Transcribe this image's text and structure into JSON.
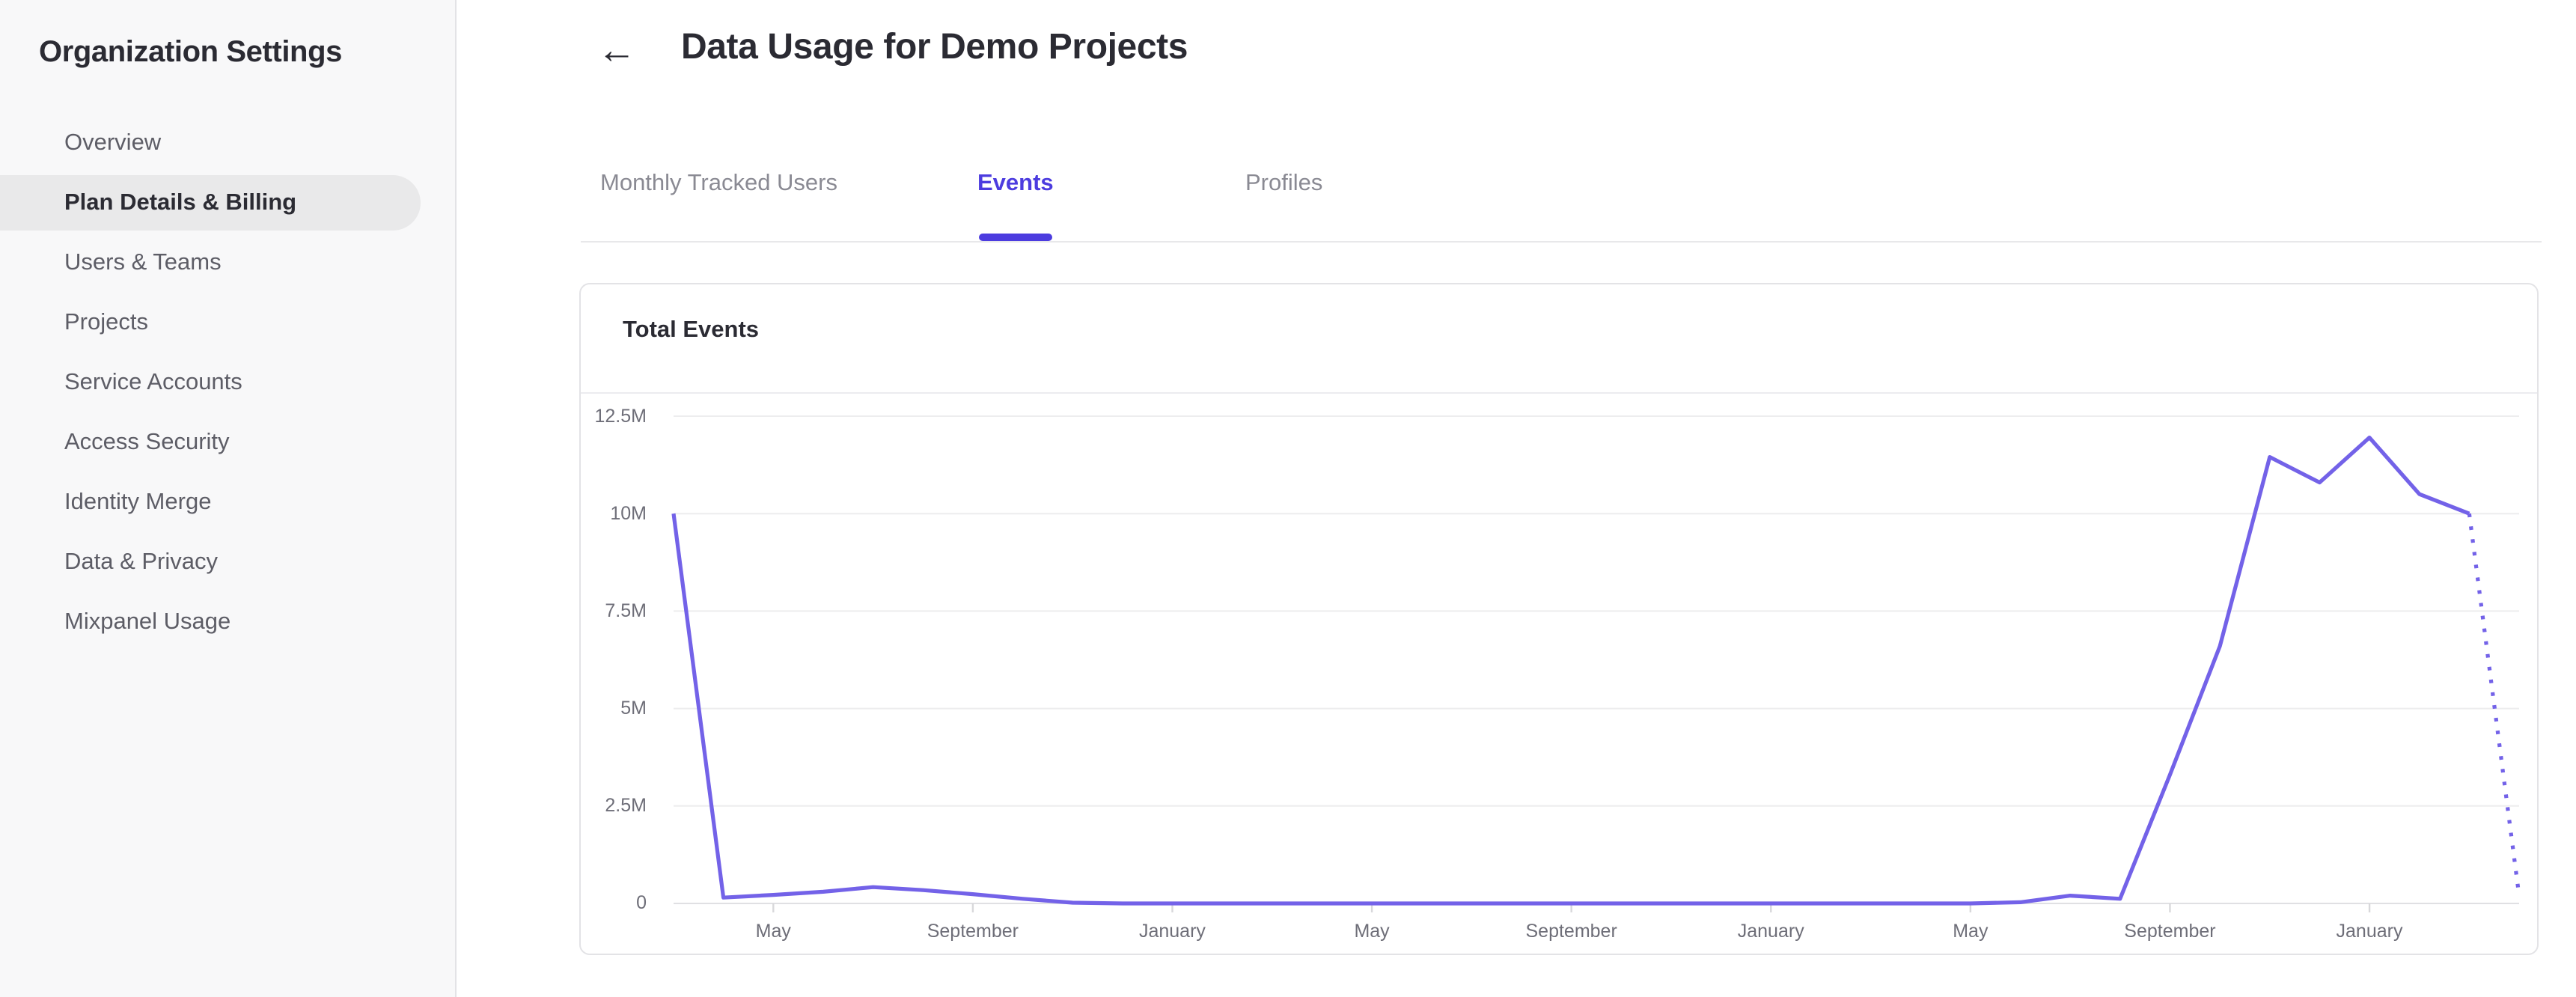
{
  "sidebar": {
    "title": "Organization Settings",
    "items": [
      {
        "label": "Overview",
        "active": false
      },
      {
        "label": "Plan Details & Billing",
        "active": true
      },
      {
        "label": "Users & Teams",
        "active": false
      },
      {
        "label": "Projects",
        "active": false
      },
      {
        "label": "Service Accounts",
        "active": false
      },
      {
        "label": "Access Security",
        "active": false
      },
      {
        "label": "Identity Merge",
        "active": false
      },
      {
        "label": "Data & Privacy",
        "active": false
      },
      {
        "label": "Mixpanel Usage",
        "active": false
      }
    ]
  },
  "header": {
    "back_icon": "←",
    "title": "Data Usage for Demo Projects"
  },
  "tabs": [
    {
      "label": "Monthly Tracked Users",
      "active": false
    },
    {
      "label": "Events",
      "active": true
    },
    {
      "label": "Profiles",
      "active": false
    }
  ],
  "card": {
    "title": "Total Events"
  },
  "colors": {
    "accent": "#4c3cdf",
    "line": "#7362e8",
    "grid": "#ededee",
    "axis_line": "#e0e0e3",
    "tick": "#d8d8db",
    "axis_text": "#6e6e78",
    "sidebar_bg": "#f8f8f9",
    "selected_item_bg": "#e9e9ea"
  },
  "chart_data": {
    "type": "line",
    "title": "Total Events",
    "xlabel": "",
    "ylabel": "",
    "ylim_events": [
      0,
      12500000
    ],
    "y_tick_labels": [
      "12.5M",
      "10M",
      "7.5M",
      "5M",
      "2.5M",
      "0"
    ],
    "y_tick_values_millions": [
      12.5,
      10,
      7.5,
      5,
      2.5,
      0
    ],
    "x_tick_labels": [
      "May",
      "September",
      "January",
      "May",
      "September",
      "January",
      "May",
      "September",
      "January"
    ],
    "x_tick_indices": [
      2,
      6,
      10,
      14,
      18,
      22,
      26,
      30,
      34
    ],
    "x_granularity": "monthly",
    "grid": "horizontal",
    "legend_position": "none",
    "series": [
      {
        "name": "Total Events",
        "unit": "millions",
        "values_millions": [
          10,
          0.15,
          0.22,
          0.3,
          0.42,
          0.34,
          0.24,
          0.12,
          0.02,
          0,
          0,
          0,
          0,
          0,
          0,
          0,
          0,
          0,
          0,
          0,
          0,
          0,
          0,
          0,
          0,
          0,
          0,
          0.03,
          0.2,
          0.12,
          3.3,
          6.6,
          11.45,
          10.8,
          11.95,
          10.5,
          10.0,
          0.2
        ]
      }
    ],
    "last_segment_style": "dotted_projection"
  }
}
